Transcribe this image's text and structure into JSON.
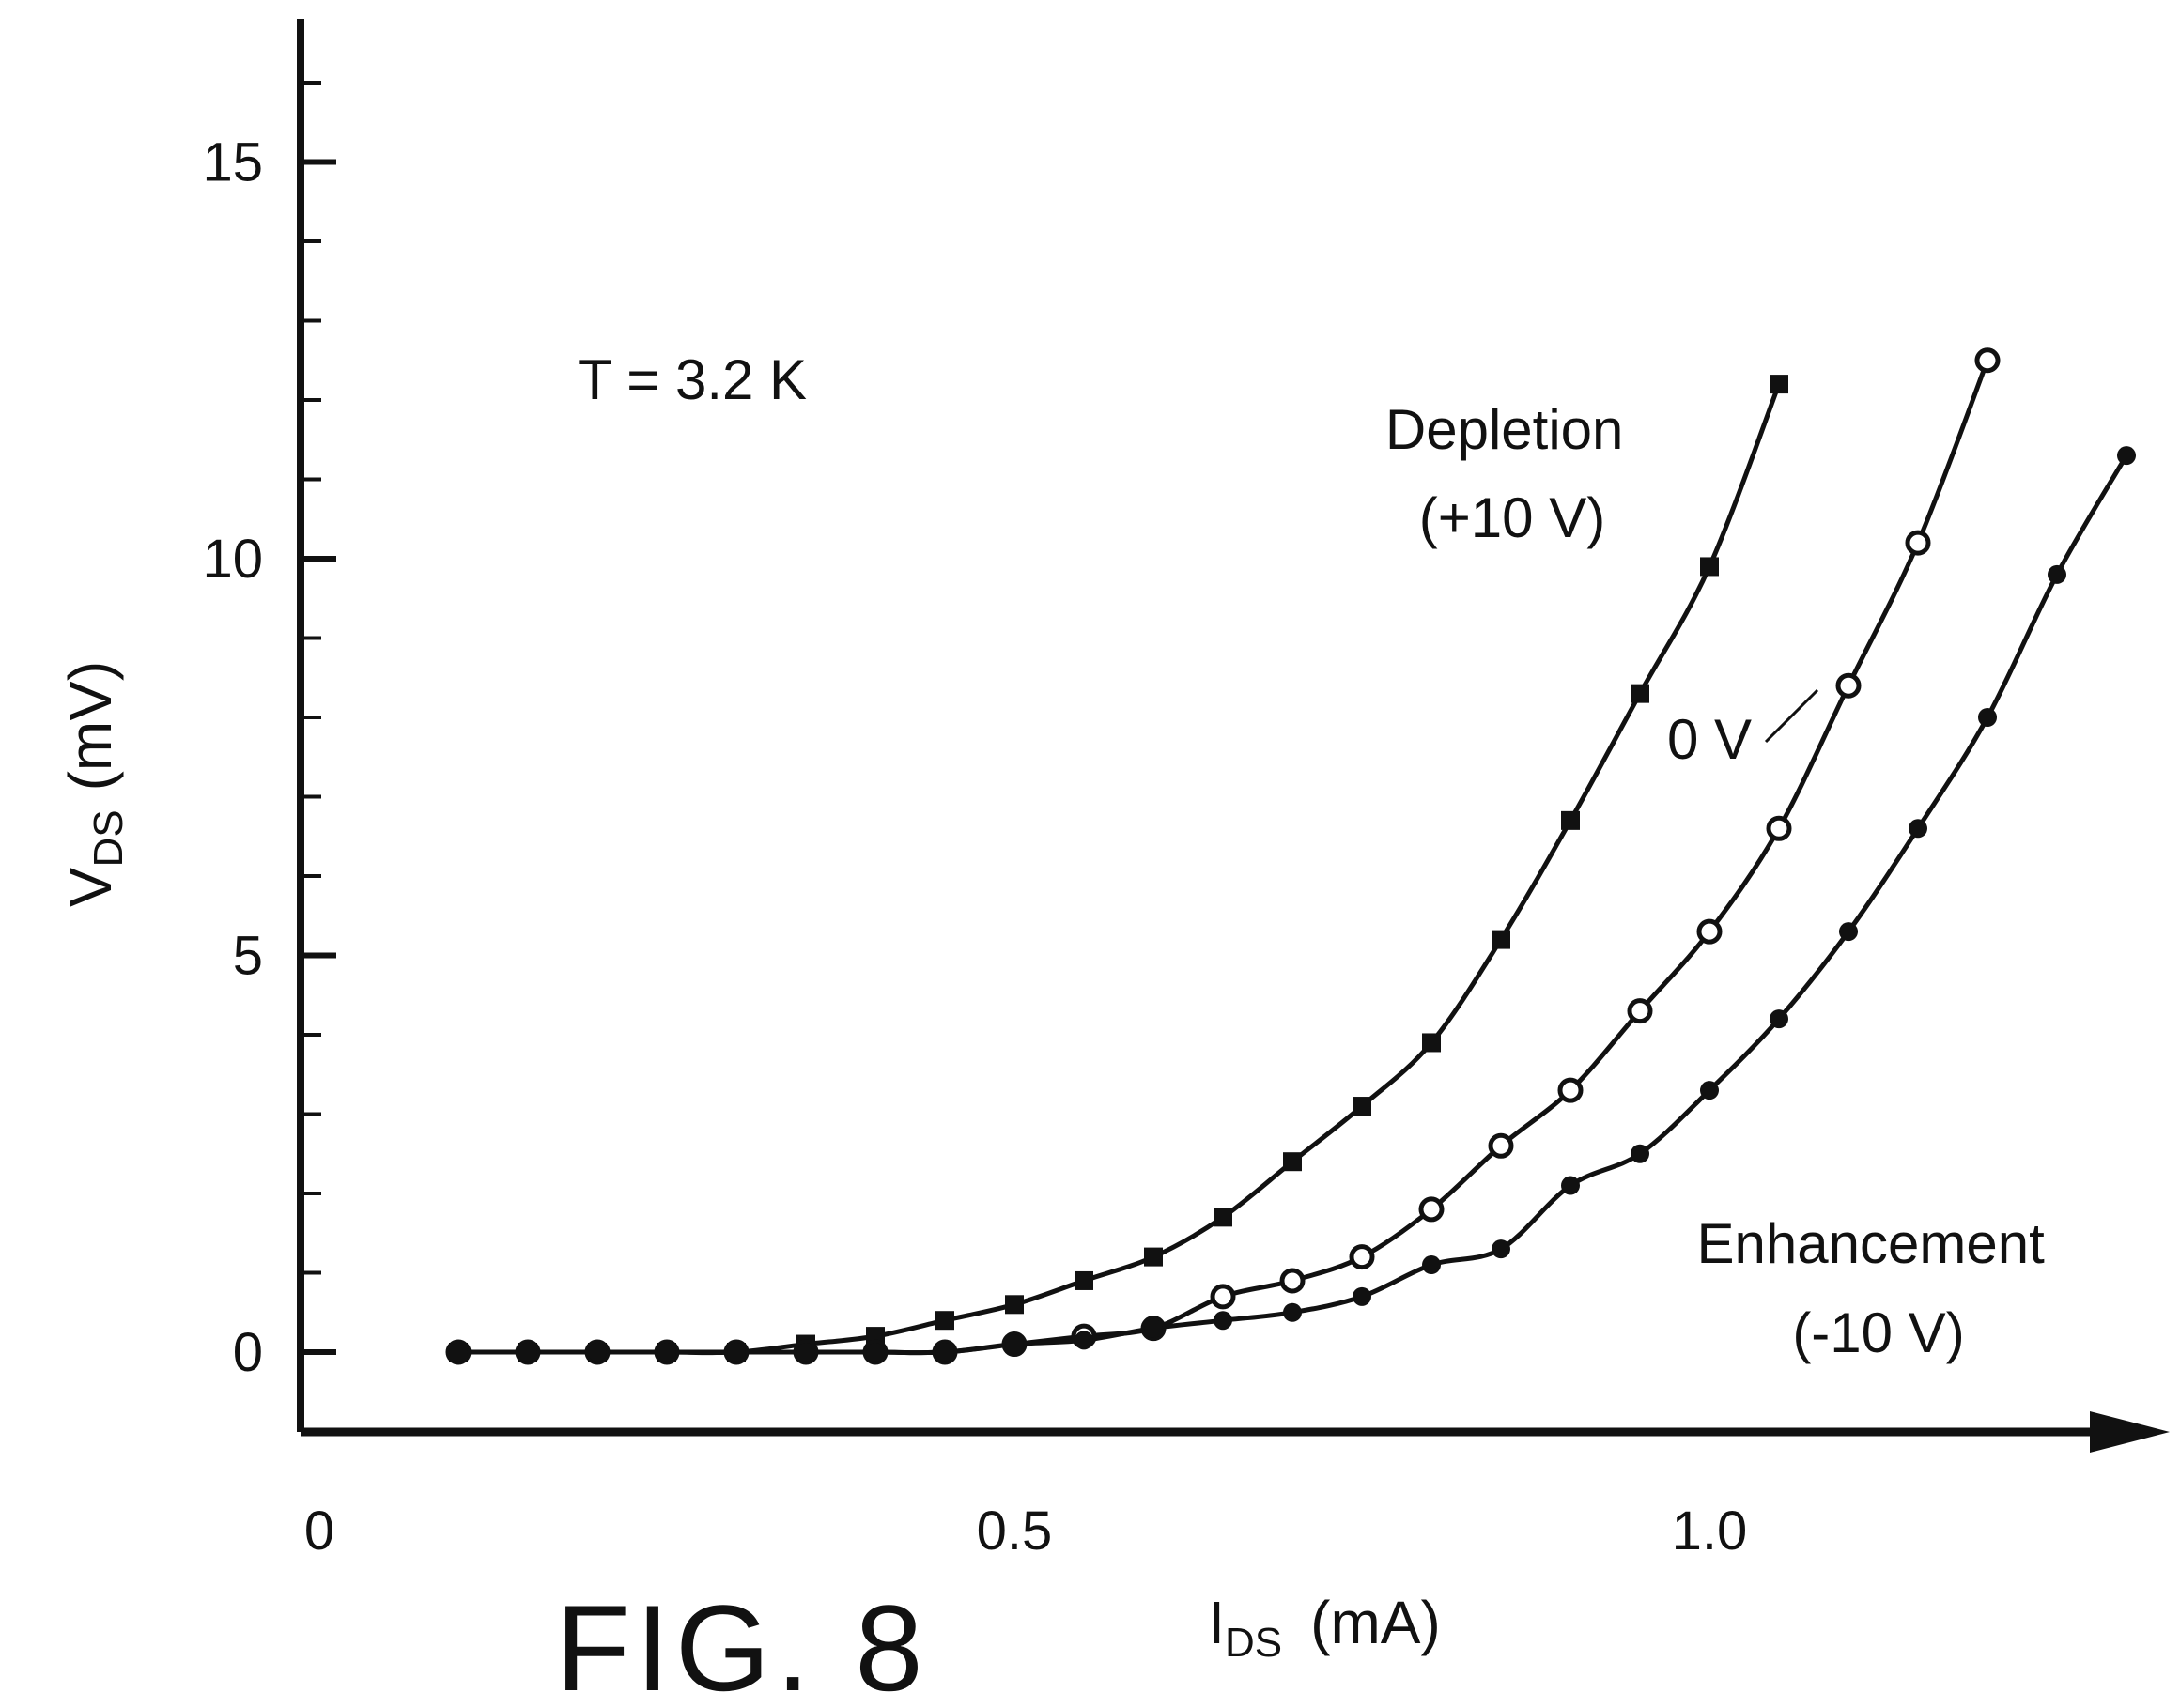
{
  "chart_data": {
    "type": "line",
    "title": "",
    "xlabel_main": "I",
    "xlabel_sub": "DS",
    "xlabel_unit": "(mA)",
    "ylabel_main": "V",
    "ylabel_sub": "DS",
    "ylabel_unit": "(mV)",
    "xlim": [
      0,
      1.3
    ],
    "ylim": [
      -1,
      17
    ],
    "x_ticks": [
      0,
      0.5,
      1.0
    ],
    "x_tick_labels": [
      "0",
      "0.5",
      "1.0"
    ],
    "y_ticks": [
      0,
      5,
      10,
      15
    ],
    "y_tick_labels": [
      "0",
      "5",
      "10",
      "15"
    ],
    "grid": false,
    "legend": "none",
    "figure_label": "FIG. 8",
    "temperature_annotation": "T = 3.2 K",
    "series": [
      {
        "name": "Depletion (+10 V)",
        "label_lines": [
          "Depletion",
          "(+10 V)"
        ],
        "marker": "square",
        "x": [
          0.1,
          0.15,
          0.2,
          0.25,
          0.3,
          0.35,
          0.4,
          0.45,
          0.5,
          0.55,
          0.6,
          0.65,
          0.7,
          0.75,
          0.8,
          0.85,
          0.9,
          0.95,
          1.0,
          1.05
        ],
        "y": [
          0,
          0,
          0,
          0,
          0,
          0.1,
          0.2,
          0.4,
          0.6,
          0.9,
          1.2,
          1.7,
          2.4,
          3.1,
          3.9,
          5.2,
          6.7,
          8.3,
          9.9,
          12.2
        ]
      },
      {
        "name": "0 V",
        "label_lines": [
          "0 V"
        ],
        "marker": "circle-open",
        "x": [
          0.1,
          0.15,
          0.2,
          0.25,
          0.3,
          0.35,
          0.4,
          0.45,
          0.5,
          0.55,
          0.6,
          0.65,
          0.7,
          0.75,
          0.8,
          0.85,
          0.9,
          0.95,
          1.0,
          1.05,
          1.1,
          1.15,
          1.2
        ],
        "y": [
          0,
          0,
          0,
          0,
          0,
          0,
          0,
          0,
          0.1,
          0.2,
          0.3,
          0.7,
          0.9,
          1.2,
          1.8,
          2.6,
          3.3,
          4.3,
          5.3,
          6.6,
          8.4,
          10.2,
          12.5
        ]
      },
      {
        "name": "Enhancement (-10 V)",
        "label_lines": [
          "Enhancement",
          "(-10 V)"
        ],
        "marker": "circle-filled",
        "x": [
          0.1,
          0.15,
          0.2,
          0.25,
          0.3,
          0.35,
          0.4,
          0.45,
          0.5,
          0.55,
          0.6,
          0.65,
          0.7,
          0.75,
          0.8,
          0.85,
          0.9,
          0.95,
          1.0,
          1.05,
          1.1,
          1.15,
          1.2,
          1.25,
          1.3
        ],
        "y": [
          0,
          0,
          0,
          0,
          0,
          0,
          0,
          0,
          0.1,
          0.15,
          0.3,
          0.4,
          0.5,
          0.7,
          1.1,
          1.3,
          2.1,
          2.5,
          3.3,
          4.2,
          5.3,
          6.6,
          8.0,
          9.8,
          11.3
        ]
      }
    ]
  }
}
